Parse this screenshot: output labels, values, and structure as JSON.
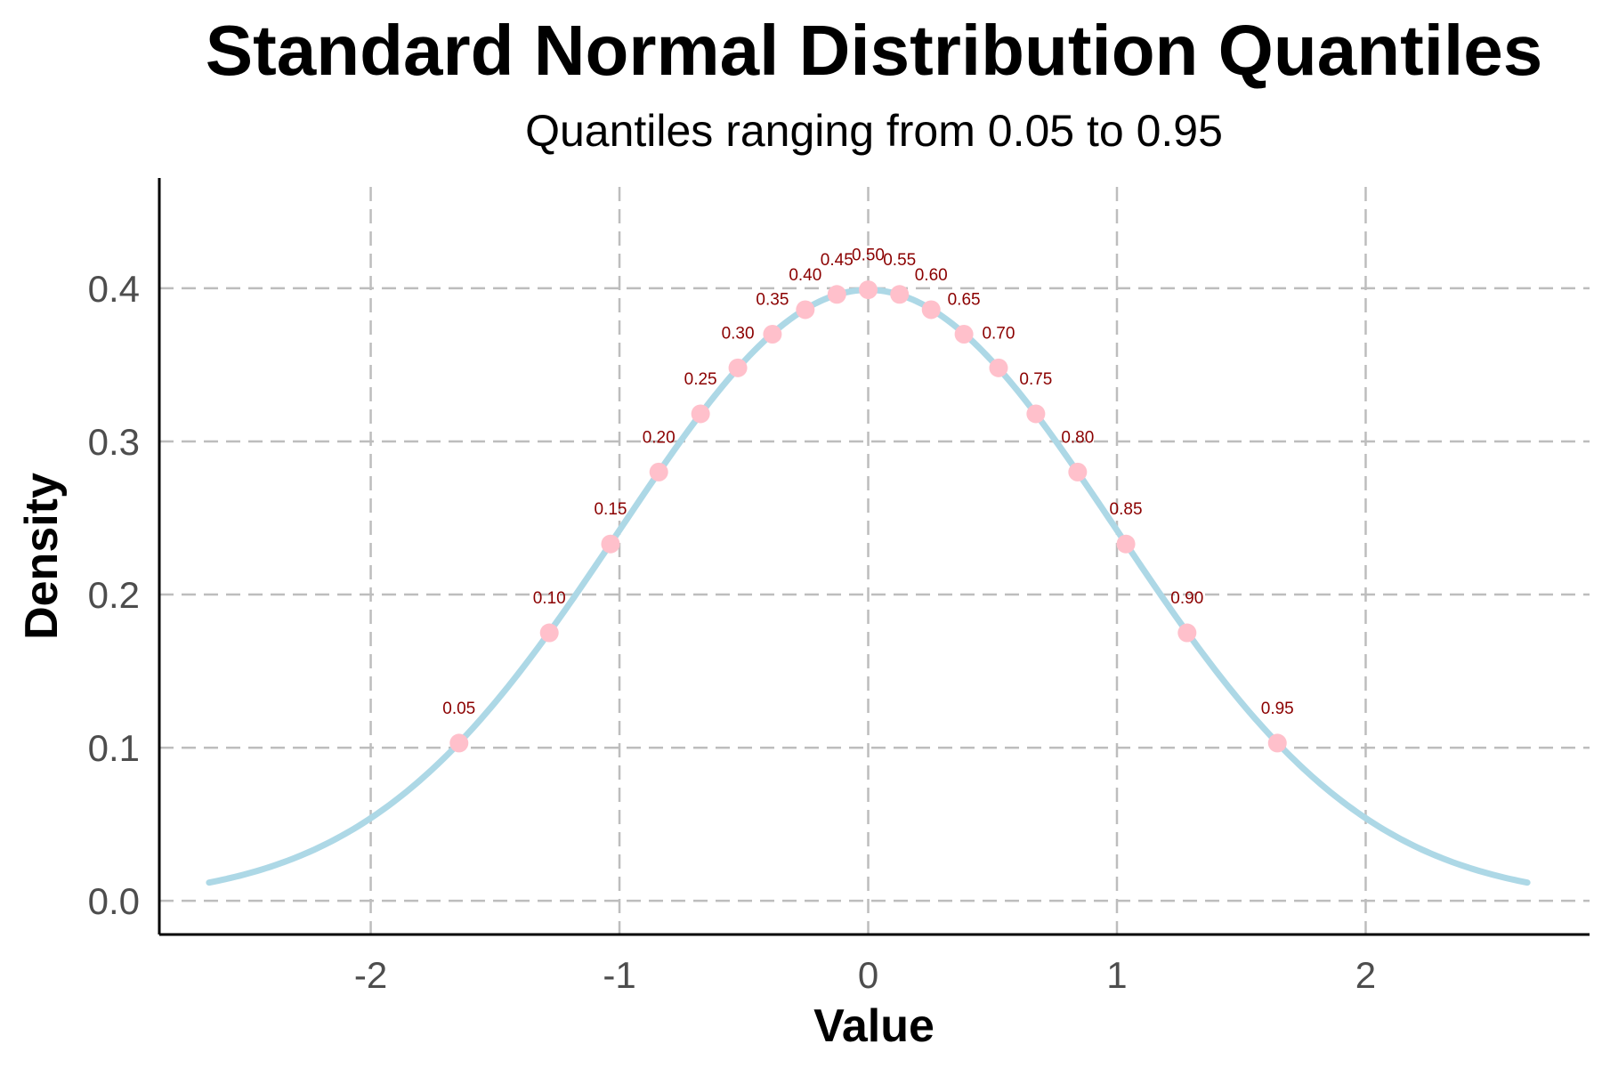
{
  "chart_data": {
    "type": "line",
    "title": "Standard Normal Distribution Quantiles",
    "subtitle": "Quantiles ranging from 0.05 to 0.95",
    "xlabel": "Value",
    "ylabel": "Density",
    "xlim": [
      -2.85,
      2.9
    ],
    "ylim": [
      -0.022,
      0.472
    ],
    "x_ticks": [
      -2,
      -1,
      0,
      1,
      2
    ],
    "x_tick_labels": [
      "-2",
      "-1",
      "0",
      "1",
      "2"
    ],
    "y_ticks": [
      0.0,
      0.1,
      0.2,
      0.3,
      0.4
    ],
    "y_tick_labels": [
      "0.0",
      "0.1",
      "0.2",
      "0.3",
      "0.4"
    ],
    "grid": true,
    "grid_style": "dashed",
    "curve": {
      "x_range": [
        -2.65,
        2.65
      ],
      "color": "#add8e6"
    },
    "points": [
      {
        "label": "0.05",
        "x": -1.645,
        "y": 0.103
      },
      {
        "label": "0.10",
        "x": -1.282,
        "y": 0.175
      },
      {
        "label": "0.15",
        "x": -1.036,
        "y": 0.233
      },
      {
        "label": "0.20",
        "x": -0.842,
        "y": 0.28
      },
      {
        "label": "0.25",
        "x": -0.674,
        "y": 0.318
      },
      {
        "label": "0.30",
        "x": -0.524,
        "y": 0.348
      },
      {
        "label": "0.35",
        "x": -0.385,
        "y": 0.37
      },
      {
        "label": "0.40",
        "x": -0.253,
        "y": 0.386
      },
      {
        "label": "0.45",
        "x": -0.126,
        "y": 0.396
      },
      {
        "label": "0.50",
        "x": 0.0,
        "y": 0.399
      },
      {
        "label": "0.55",
        "x": 0.126,
        "y": 0.396
      },
      {
        "label": "0.60",
        "x": 0.253,
        "y": 0.386
      },
      {
        "label": "0.65",
        "x": 0.385,
        "y": 0.37
      },
      {
        "label": "0.70",
        "x": 0.524,
        "y": 0.348
      },
      {
        "label": "0.75",
        "x": 0.674,
        "y": 0.318
      },
      {
        "label": "0.80",
        "x": 0.842,
        "y": 0.28
      },
      {
        "label": "0.85",
        "x": 1.036,
        "y": 0.233
      },
      {
        "label": "0.90",
        "x": 1.282,
        "y": 0.175
      },
      {
        "label": "0.95",
        "x": 1.645,
        "y": 0.103
      }
    ],
    "point_color": "#ffc0cb",
    "label_color": "#8b0000"
  }
}
